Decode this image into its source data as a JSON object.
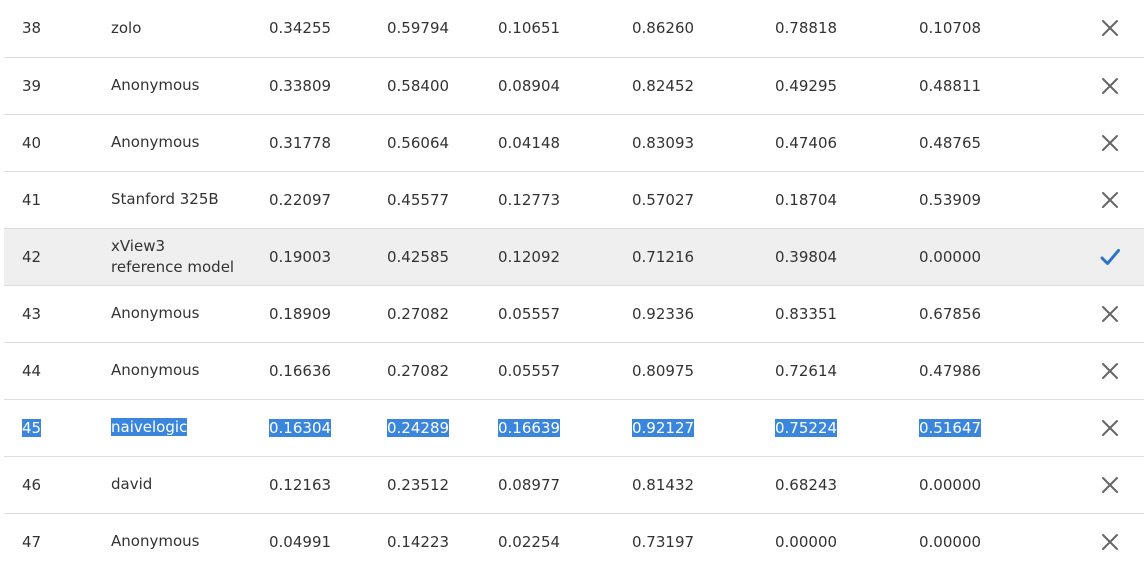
{
  "leaderboard": {
    "rows": [
      {
        "rank": "38",
        "team": "zolo",
        "s1": "0.34255",
        "s2": "0.59794",
        "s3": "0.10651",
        "s4": "0.86260",
        "s5": "0.78818",
        "s6": "0.10708",
        "status_icon": "close-icon"
      },
      {
        "rank": "39",
        "team": "Anonymous",
        "s1": "0.33809",
        "s2": "0.58400",
        "s3": "0.08904",
        "s4": "0.82452",
        "s5": "0.49295",
        "s6": "0.48811",
        "status_icon": "close-icon"
      },
      {
        "rank": "40",
        "team": "Anonymous",
        "s1": "0.31778",
        "s2": "0.56064",
        "s3": "0.04148",
        "s4": "0.83093",
        "s5": "0.47406",
        "s6": "0.48765",
        "status_icon": "close-icon"
      },
      {
        "rank": "41",
        "team": "Stanford 325B",
        "s1": "0.22097",
        "s2": "0.45577",
        "s3": "0.12773",
        "s4": "0.57027",
        "s5": "0.18704",
        "s6": "0.53909",
        "status_icon": "close-icon"
      },
      {
        "rank": "42",
        "team_line1": "xView3",
        "team_line2": "reference model",
        "s1": "0.19003",
        "s2": "0.42585",
        "s3": "0.12092",
        "s4": "0.71216",
        "s5": "0.39804",
        "s6": "0.00000",
        "status_icon": "check-icon"
      },
      {
        "rank": "43",
        "team": "Anonymous",
        "s1": "0.18909",
        "s2": "0.27082",
        "s3": "0.05557",
        "s4": "0.92336",
        "s5": "0.83351",
        "s6": "0.67856",
        "status_icon": "close-icon"
      },
      {
        "rank": "44",
        "team": "Anonymous",
        "s1": "0.16636",
        "s2": "0.27082",
        "s3": "0.05557",
        "s4": "0.80975",
        "s5": "0.72614",
        "s6": "0.47986",
        "status_icon": "close-icon"
      },
      {
        "rank": "45",
        "team": "naivelogic",
        "s1": "0.16304",
        "s2": "0.24289",
        "s3": "0.16639",
        "s4": "0.92127",
        "s5": "0.75224",
        "s6": "0.51647",
        "status_icon": "close-icon"
      },
      {
        "rank": "46",
        "team": "david",
        "s1": "0.12163",
        "s2": "0.23512",
        "s3": "0.08977",
        "s4": "0.81432",
        "s5": "0.68243",
        "s6": "0.00000",
        "status_icon": "close-icon"
      },
      {
        "rank": "47",
        "team": "Anonymous",
        "s1": "0.04991",
        "s2": "0.14223",
        "s3": "0.02254",
        "s4": "0.73197",
        "s5": "0.00000",
        "s6": "0.00000",
        "status_icon": "close-icon"
      }
    ]
  },
  "colors": {
    "selection_bg": "#3a86dd",
    "highlight_row_bg": "#efefef",
    "check_color": "#2d72c9",
    "close_color": "#666666"
  }
}
